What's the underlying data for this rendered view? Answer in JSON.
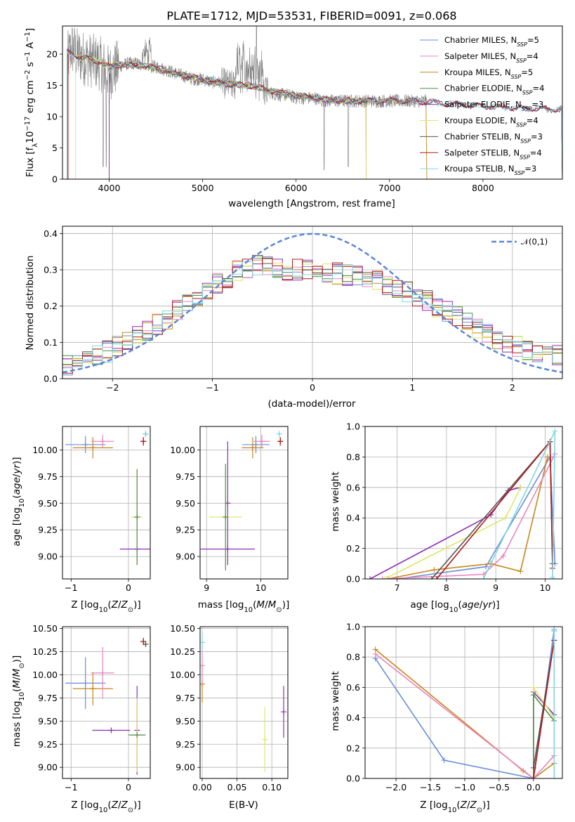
{
  "figure": {
    "title": "PLATE=1712, MJD=53531, FIBERID=0091, z=0.068"
  },
  "colors": {
    "Chabrier MILES": "#6a8dd8",
    "Salpeter MILES": "#e984c0",
    "Kroupa MILES": "#c8861a",
    "Chabrier ELODIE": "#4f8f4f",
    "Salpeter ELODIE": "#8e2fb0",
    "Kroupa ELODIE": "#dde66a",
    "Chabrier STELIB": "#555555",
    "Salpeter STELIB": "#b01a1a",
    "Kroupa STELIB": "#7fd6e0",
    "data": "#808080",
    "normal": "#5b86d6"
  },
  "chart_data": [
    {
      "id": "spectrum",
      "type": "line",
      "xlabel": "wavelength [Angstrom, rest frame]",
      "ylabel": "Flux [f_λ 10^-17 erg cm^-2 s^-1 A^-1]",
      "xlim": [
        3500,
        8850
      ],
      "ylim": [
        0,
        24.5
      ],
      "xticks": [
        4000,
        5000,
        6000,
        7000,
        8000
      ],
      "yticks": [
        0,
        5,
        10,
        15,
        20
      ],
      "legend_position": "upper right",
      "legend": [
        {
          "name": "Chabrier MILES",
          "nssp": "5"
        },
        {
          "name": "Salpeter MILES",
          "nssp": "4"
        },
        {
          "name": "Kroupa MILES",
          "nssp": "5"
        },
        {
          "name": "Chabrier ELODIE",
          "nssp": "4"
        },
        {
          "name": "Salpeter ELODIE",
          "nssp": "3"
        },
        {
          "name": "Kroupa ELODIE",
          "nssp": "4"
        },
        {
          "name": "Chabrier STELIB",
          "nssp": "3"
        },
        {
          "name": "Salpeter STELIB",
          "nssp": "4"
        },
        {
          "name": "Kroupa STELIB",
          "nssp": "3"
        }
      ],
      "data_continuum": {
        "x": [
          3550,
          3600,
          3650,
          3700,
          3800,
          3900,
          4000,
          4100,
          4200,
          4300,
          4400,
          4500,
          4600,
          4700,
          4800,
          4900,
          5000,
          5100,
          5200,
          5300,
          5400,
          5500,
          5600,
          5700,
          5800,
          5900,
          6000,
          6100,
          6200,
          6300,
          6400,
          6500,
          6600,
          6700,
          6800,
          6900,
          7000,
          7100,
          7200,
          7300,
          7400
        ],
        "y": [
          19,
          21,
          20,
          19.5,
          19,
          18.5,
          17,
          18,
          18.5,
          18.5,
          18,
          18,
          17.5,
          17,
          16.5,
          16,
          16,
          15.5,
          15.5,
          15,
          15,
          15,
          14.5,
          14,
          13.5,
          13.5,
          13,
          13,
          13,
          12.5,
          12.5,
          12.5,
          12.5,
          12.5,
          12.5,
          12.5,
          12.5,
          12.5,
          12.5,
          12.5,
          12.5
        ]
      },
      "model_continuum": {
        "x": [
          3550,
          3700,
          3900,
          4000,
          4100,
          4300,
          4500,
          4700,
          4900,
          5100,
          5300,
          5500,
          5700,
          5900,
          6100,
          6300,
          6500,
          6700,
          6900,
          7100,
          7300,
          7400,
          7500,
          7700,
          7900,
          8100,
          8300,
          8500,
          8700
        ],
        "y": [
          20.5,
          19.5,
          18.8,
          18,
          18.3,
          18.2,
          17.8,
          17,
          16.2,
          15.6,
          15.2,
          15,
          14.2,
          13.6,
          13.2,
          12.8,
          12.6,
          12.5,
          12.5,
          12.6,
          12.4,
          12.4,
          12.2,
          12,
          11.8,
          11.6,
          11.4,
          11.3,
          11.2
        ]
      }
    },
    {
      "id": "residuals",
      "type": "histogram",
      "xlabel": "(data-model)/error",
      "ylabel": "Normed distribution",
      "xlim": [
        -2.5,
        2.5
      ],
      "ylim": [
        0,
        0.42
      ],
      "xticks": [
        -2,
        -1,
        0,
        1,
        2
      ],
      "yticks": [
        0.0,
        0.1,
        0.2,
        0.3,
        0.4
      ],
      "grid": true,
      "legend_position": "upper right",
      "reference": {
        "name": "𝒩(0,1)",
        "mean": 0,
        "sigma": 1,
        "style": "dashed"
      },
      "bin_width": 0.1,
      "mean_profile": [
        0.035,
        0.045,
        0.055,
        0.065,
        0.075,
        0.09,
        0.105,
        0.12,
        0.135,
        0.15,
        0.165,
        0.185,
        0.205,
        0.22,
        0.24,
        0.26,
        0.28,
        0.295,
        0.305,
        0.31,
        0.31,
        0.305,
        0.3,
        0.3,
        0.3,
        0.3,
        0.295,
        0.29,
        0.285,
        0.28,
        0.275,
        0.27,
        0.26,
        0.25,
        0.24,
        0.23,
        0.215,
        0.2,
        0.185,
        0.17,
        0.155,
        0.14,
        0.125,
        0.11,
        0.1,
        0.09,
        0.08,
        0.075,
        0.07,
        0.065
      ]
    },
    {
      "id": "age_vs_Z",
      "type": "errorbar",
      "xlabel": "Z [log10(Z/Z⊙)]",
      "ylabel": "age [log10(age/yr)]",
      "xlim": [
        -1.15,
        0.38
      ],
      "ylim": [
        8.79,
        10.22
      ],
      "xticks": [
        -1,
        0
      ],
      "yticks": [
        9.0,
        9.25,
        9.5,
        9.75,
        10.0
      ],
      "points": [
        {
          "model": "Chabrier MILES",
          "x": -0.75,
          "y": 10.05,
          "xerr": 0.35,
          "yerr": 0.08
        },
        {
          "model": "Kroupa MILES",
          "x": -0.62,
          "y": 10.02,
          "xerr": 0.35,
          "yerr": 0.1
        },
        {
          "model": "Salpeter MILES",
          "x": -0.45,
          "y": 10.08,
          "xerr": 0.2,
          "yerr": 0.06
        },
        {
          "model": "Salpeter ELODIE",
          "x": 0.15,
          "y": 9.07,
          "xerr": 0.3,
          "yerr": 0.0
        },
        {
          "model": "Kroupa ELODIE",
          "x": 0.15,
          "y": 9.37,
          "xerr": 0.1,
          "yerr": 0.45
        },
        {
          "model": "Chabrier ELODIE",
          "x": 0.15,
          "y": 9.37,
          "xerr": 0.0,
          "yerr": 0.45
        },
        {
          "model": "Salpeter STELIB",
          "x": 0.26,
          "y": 10.08,
          "xerr": 0.05,
          "yerr": 0.04
        },
        {
          "model": "Chabrier STELIB",
          "x": 0.3,
          "y": 10.15,
          "xerr": 0.02,
          "yerr": 0.02
        },
        {
          "model": "Kroupa STELIB",
          "x": 0.3,
          "y": 10.15,
          "xerr": 0.02,
          "yerr": 0.02
        }
      ]
    },
    {
      "id": "age_vs_mass",
      "type": "errorbar",
      "xlabel": "mass [log10(M/M⊙)]",
      "ylabel": "",
      "xlim": [
        8.88,
        10.5
      ],
      "ylim": [
        8.79,
        10.22
      ],
      "xticks": [
        9,
        10
      ],
      "yticks": [
        9.0,
        9.25,
        9.5,
        9.75,
        10.0
      ],
      "points": [
        {
          "model": "Chabrier MILES",
          "x": 9.91,
          "y": 10.05,
          "xerr": 0.25,
          "yerr": 0.08
        },
        {
          "model": "Kroupa MILES",
          "x": 9.85,
          "y": 10.02,
          "xerr": 0.2,
          "yerr": 0.1
        },
        {
          "model": "Salpeter MILES",
          "x": 10.02,
          "y": 10.08,
          "xerr": 0.15,
          "yerr": 0.06
        },
        {
          "model": "Salpeter ELODIE",
          "x": 9.39,
          "y": 9.07,
          "xerr": 0.5,
          "yerr": 0.0
        },
        {
          "model": "Salpeter ELODIE",
          "x": 9.39,
          "y": 9.5,
          "xerr": 0.0,
          "yerr": 0.58
        },
        {
          "model": "Kroupa ELODIE",
          "x": 9.35,
          "y": 9.37,
          "xerr": 0.3,
          "yerr": 0.45
        },
        {
          "model": "Chabrier ELODIE",
          "x": 9.35,
          "y": 9.37,
          "xerr": 0.0,
          "yerr": 0.5
        },
        {
          "model": "Salpeter STELIB",
          "x": 10.36,
          "y": 10.08,
          "xerr": 0.05,
          "yerr": 0.04
        },
        {
          "model": "Kroupa STELIB",
          "x": 10.34,
          "y": 10.15,
          "xerr": 0.02,
          "yerr": 0.02
        }
      ]
    },
    {
      "id": "weights_vs_age",
      "type": "line",
      "xlabel": "age [log10(age/yr)]",
      "ylabel": "mass weight",
      "xlim": [
        6.35,
        10.35
      ],
      "ylim": [
        0,
        1.0
      ],
      "xticks": [
        7,
        8,
        9,
        10
      ],
      "yticks": [
        0.0,
        0.2,
        0.4,
        0.6,
        0.8,
        1.0
      ],
      "grid": true,
      "series": [
        {
          "model": "Chabrier MILES",
          "x": [
            7.0,
            8.8,
            10.1,
            10.2
          ],
          "y": [
            0.0,
            0.08,
            0.8,
            0.1
          ]
        },
        {
          "model": "Kroupa MILES",
          "x": [
            6.8,
            7.75,
            8.9,
            9.5,
            10.05
          ],
          "y": [
            0.0,
            0.06,
            0.1,
            0.05,
            0.8
          ]
        },
        {
          "model": "Salpeter MILES",
          "x": [
            6.7,
            8.75,
            9.15,
            10.2
          ],
          "y": [
            0.0,
            0.03,
            0.15,
            0.82
          ]
        },
        {
          "model": "Salpeter ELODIE",
          "x": [
            6.45,
            8.9,
            9.25,
            9.5
          ],
          "y": [
            0.0,
            0.42,
            0.58,
            0.6
          ]
        },
        {
          "model": "Kroupa ELODIE",
          "x": [
            6.75,
            9.2,
            9.5
          ],
          "y": [
            0.0,
            0.4,
            0.6
          ]
        },
        {
          "model": "Chabrier STELIB",
          "x": [
            7.7,
            10.1,
            10.15
          ],
          "y": [
            0.0,
            0.9,
            0.1
          ]
        },
        {
          "model": "Salpeter STELIB",
          "x": [
            7.8,
            10.1,
            10.15
          ],
          "y": [
            0.0,
            0.9,
            0.07
          ]
        },
        {
          "model": "Kroupa STELIB",
          "x": [
            8.75,
            10.2,
            10.15
          ],
          "y": [
            0.0,
            0.97,
            0.01
          ]
        }
      ]
    },
    {
      "id": "mass_vs_Z",
      "type": "errorbar",
      "xlabel": "Z [log10(Z/Z⊙)]",
      "ylabel": "mass [log10(M/M⊙)]",
      "xlim": [
        -1.15,
        0.38
      ],
      "ylim": [
        8.88,
        10.52
      ],
      "xticks": [
        -1,
        0
      ],
      "yticks": [
        9.0,
        9.25,
        9.5,
        9.75,
        10.0,
        10.25,
        10.5
      ],
      "points": [
        {
          "model": "Chabrier MILES",
          "x": -0.75,
          "y": 9.91,
          "xerr": 0.35,
          "yerr": 0.28
        },
        {
          "model": "Kroupa MILES",
          "x": -0.62,
          "y": 9.85,
          "xerr": 0.35,
          "yerr": 0.18
        },
        {
          "model": "Salpeter MILES",
          "x": -0.45,
          "y": 10.02,
          "xerr": 0.2,
          "yerr": 0.28
        },
        {
          "model": "Salpeter ELODIE",
          "x": 0.15,
          "y": 9.4,
          "xerr": 0.0,
          "yerr": 0.48
        },
        {
          "model": "Salpeter ELODIE",
          "x": -0.3,
          "y": 9.4,
          "xerr": 0.33,
          "yerr": 0.0
        },
        {
          "model": "Kroupa ELODIE",
          "x": 0.15,
          "y": 9.35,
          "xerr": 0.1,
          "yerr": 0.4
        },
        {
          "model": "Chabrier ELODIE",
          "x": 0.15,
          "y": 9.35,
          "xerr": 0.15,
          "yerr": 0.0
        },
        {
          "model": "Salpeter STELIB",
          "x": 0.26,
          "y": 10.36,
          "xerr": 0.05,
          "yerr": 0.04
        },
        {
          "model": "Chabrier STELIB",
          "x": 0.3,
          "y": 10.33,
          "xerr": 0.02,
          "yerr": 0.02
        }
      ]
    },
    {
      "id": "mass_vs_ebv",
      "type": "errorbar",
      "xlabel": "E(B-V)",
      "ylabel": "",
      "xlim": [
        -0.003,
        0.123
      ],
      "ylim": [
        8.88,
        10.52
      ],
      "xticks": [
        0.0,
        0.05,
        0.1
      ],
      "yticks": [
        9.0,
        9.25,
        9.5,
        9.75,
        10.0,
        10.25,
        10.5
      ],
      "points": [
        {
          "model": "Kroupa MILES",
          "x": 0.0,
          "y": 9.9,
          "xerr": 0.0,
          "yerr": 0.2
        },
        {
          "model": "Salpeter MILES",
          "x": 0.0,
          "y": 10.1,
          "xerr": 0.0,
          "yerr": 0.2
        },
        {
          "model": "Kroupa STELIB",
          "x": 0.0,
          "y": 10.35,
          "xerr": 0.0,
          "yerr": 0.1
        },
        {
          "model": "Kroupa ELODIE",
          "x": 0.09,
          "y": 9.3,
          "xerr": 0.0,
          "yerr": 0.35
        },
        {
          "model": "Salpeter ELODIE",
          "x": 0.117,
          "y": 9.6,
          "xerr": 0.0,
          "yerr": 0.28
        }
      ]
    },
    {
      "id": "weights_vs_Z",
      "type": "line",
      "xlabel": "Z [log10(Z/Z⊙)]",
      "ylabel": "mass weight",
      "xlim": [
        -2.45,
        0.42
      ],
      "ylim": [
        0,
        1.0
      ],
      "xticks": [
        -2.0,
        -1.5,
        -1.0,
        -0.5,
        0.0
      ],
      "yticks": [
        0.0,
        0.2,
        0.4,
        0.6,
        0.8,
        1.0
      ],
      "grid": true,
      "series": [
        {
          "model": "Chabrier MILES",
          "x": [
            -2.3,
            -1.3,
            0.0,
            0.3
          ],
          "y": [
            0.79,
            0.12,
            0.0,
            0.98
          ]
        },
        {
          "model": "Kroupa MILES",
          "x": [
            -2.3,
            -0.15,
            0.0,
            0.3
          ],
          "y": [
            0.85,
            0.05,
            0.0,
            0.1
          ]
        },
        {
          "model": "Salpeter MILES",
          "x": [
            -2.3,
            0.0,
            0.3
          ],
          "y": [
            0.82,
            0.0,
            0.15
          ]
        },
        {
          "model": "Salpeter ELODIE",
          "x": [
            0.0,
            0.0,
            0.3
          ],
          "y": [
            0.0,
            0.57,
            0.42
          ]
        },
        {
          "model": "Kroupa ELODIE",
          "x": [
            0.0,
            0.0,
            0.3
          ],
          "y": [
            0.0,
            0.6,
            0.4
          ]
        },
        {
          "model": "Chabrier ELODIE",
          "x": [
            0.0,
            0.0,
            0.3
          ],
          "y": [
            0.0,
            0.55,
            0.38
          ]
        },
        {
          "model": "Chabrier STELIB",
          "x": [
            0.0,
            0.3
          ],
          "y": [
            0.07,
            0.91
          ]
        },
        {
          "model": "Salpeter STELIB",
          "x": [
            0.0,
            0.3
          ],
          "y": [
            0.0,
            0.91
          ]
        },
        {
          "model": "Kroupa STELIB",
          "x": [
            0.3,
            0.3
          ],
          "y": [
            0.0,
            0.97
          ]
        }
      ]
    }
  ]
}
